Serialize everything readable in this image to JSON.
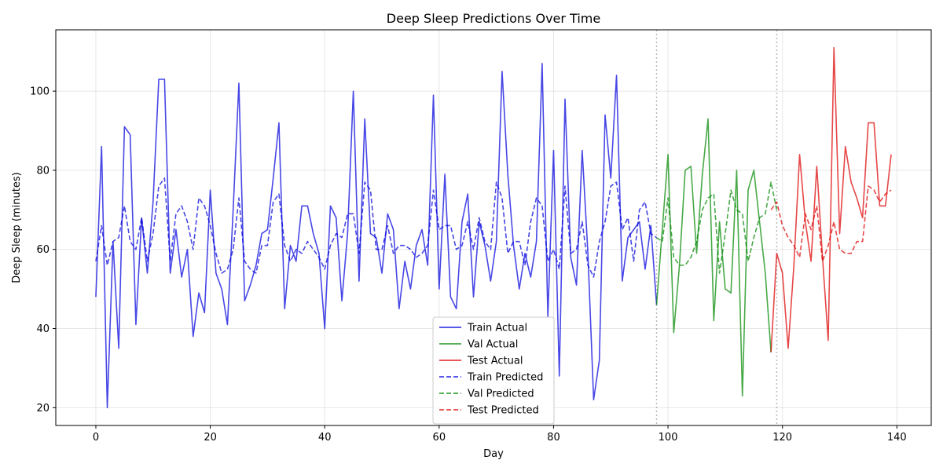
{
  "chart_data": {
    "type": "line",
    "title": "Deep Sleep Predictions Over Time",
    "xlabel": "Day",
    "ylabel": "Deep Sleep (minutes)",
    "xlim": [
      -7,
      146
    ],
    "ylim": [
      15.5,
      115.5
    ],
    "xticks": [
      0,
      20,
      40,
      60,
      80,
      100,
      120,
      140
    ],
    "yticks": [
      20,
      40,
      60,
      80,
      100
    ],
    "grid": true,
    "legend_position": "bottom-center",
    "split_markers": [
      98,
      119
    ],
    "series": [
      {
        "name": "Train Actual",
        "color": "#0000dd",
        "dashed": false,
        "x_start": 0,
        "values": [
          48,
          86,
          20,
          62,
          35,
          91,
          89,
          41,
          68,
          54,
          72,
          103,
          103,
          54,
          65,
          53,
          60,
          38,
          49,
          44,
          75,
          54,
          50,
          41,
          70,
          102,
          47,
          51,
          56,
          64,
          65,
          78,
          92,
          45,
          61,
          57,
          71,
          71,
          64,
          59,
          40,
          71,
          68,
          47,
          64,
          100,
          52,
          93,
          64,
          63,
          54,
          69,
          65,
          45,
          57,
          50,
          61,
          65,
          56,
          99,
          50,
          79,
          48,
          45,
          67,
          74,
          48,
          67,
          61,
          52,
          62,
          105,
          79,
          61,
          50,
          59,
          53,
          62,
          107,
          43,
          85,
          28,
          98,
          58,
          51,
          85,
          59,
          22,
          32,
          94,
          78,
          104,
          52,
          63,
          65,
          67,
          55,
          66,
          46
        ]
      },
      {
        "name": "Val Actual",
        "color": "#008800",
        "dashed": false,
        "x_start": 98,
        "values": [
          46,
          65,
          84,
          39,
          56,
          80,
          81,
          59,
          79,
          93,
          42,
          67,
          50,
          49,
          80,
          23,
          75,
          80,
          67,
          54,
          34
        ]
      },
      {
        "name": "Test Actual",
        "color": "#dd0000",
        "dashed": false,
        "x_start": 118,
        "values": [
          34,
          59,
          54,
          35,
          56,
          84,
          67,
          57,
          81,
          58,
          37,
          111,
          64,
          86,
          77,
          73,
          68,
          92,
          92,
          71,
          71,
          84
        ]
      },
      {
        "name": "Train Predicted",
        "color": "#0000dd",
        "dashed": true,
        "x_start": 0,
        "values": [
          57,
          66,
          56,
          62,
          63,
          71,
          62,
          60,
          68,
          57,
          64,
          76,
          78,
          57,
          69,
          71,
          67,
          60,
          73,
          71,
          66,
          59,
          54,
          55,
          60,
          73,
          57,
          55,
          54,
          61,
          61,
          72,
          74,
          61,
          57,
          60,
          59,
          62,
          60,
          58,
          55,
          61,
          64,
          63,
          69,
          69,
          59,
          77,
          75,
          60,
          60,
          66,
          59,
          61,
          61,
          60,
          58,
          59,
          61,
          75,
          65,
          66,
          66,
          60,
          61,
          67,
          60,
          68,
          62,
          60,
          77,
          73,
          59,
          62,
          62,
          56,
          67,
          73,
          71,
          57,
          60,
          55,
          76,
          59,
          60,
          67,
          56,
          53,
          62,
          67,
          76,
          77,
          65,
          68,
          57,
          70,
          72,
          64,
          63
        ]
      },
      {
        "name": "Val Predicted",
        "color": "#008800",
        "dashed": true,
        "x_start": 98,
        "values": [
          63,
          62,
          73,
          58,
          56,
          56,
          58,
          62,
          70,
          73,
          74,
          54,
          64,
          75,
          70,
          69,
          57,
          63,
          68,
          69,
          77,
          70
        ]
      },
      {
        "name": "Test Predicted",
        "color": "#dd0000",
        "dashed": true,
        "x_start": 118,
        "values": [
          70,
          72,
          66,
          63,
          61,
          58,
          69,
          65,
          71,
          57,
          61,
          67,
          60,
          59,
          59,
          62,
          62,
          76,
          75,
          72,
          74,
          75
        ]
      }
    ]
  }
}
